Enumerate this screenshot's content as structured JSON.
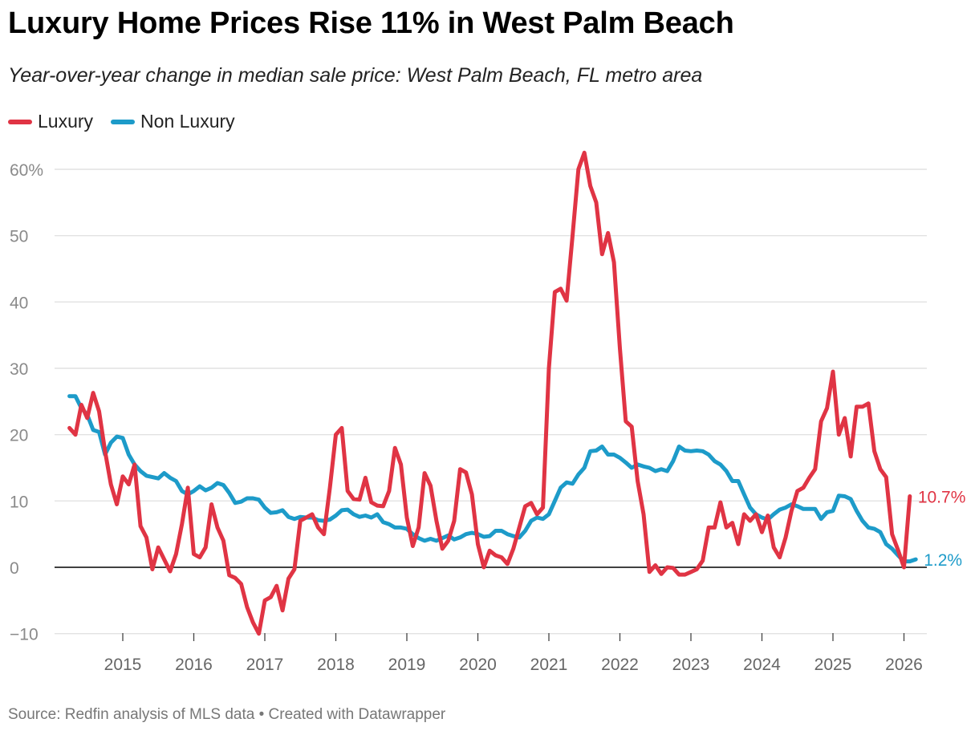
{
  "chart_data": {
    "type": "line",
    "title": "Luxury Home Prices Rise 11% in West Palm Beach",
    "subtitle": "Year-over-year change in median sale price: West Palm Beach, FL metro area",
    "footer": "Source: Redfin analysis of MLS data • Created with Datawrapper",
    "xlabel": "",
    "ylabel": "",
    "ylim": [
      -10,
      60
    ],
    "y_ticks": [
      -10,
      0,
      10,
      20,
      30,
      40,
      50,
      60
    ],
    "y_tick_labels": [
      "−10",
      "0",
      "10",
      "20",
      "30",
      "40",
      "50",
      "60%"
    ],
    "x_ticks": [
      2015,
      2016,
      2017,
      2018,
      2019,
      2020,
      2021,
      2022,
      2023,
      2024,
      2025,
      2026
    ],
    "x_tick_labels": [
      "2015",
      "2016",
      "2017",
      "2018",
      "2019",
      "2020",
      "2021",
      "2022",
      "2023",
      "2024",
      "2025",
      "2026"
    ],
    "x_start": 2014.25,
    "x_step": 0.08333,
    "series": [
      {
        "name": "Luxury",
        "color": "#e03444",
        "end_label": "10.7%",
        "values": [
          21.0,
          20.0,
          24.5,
          22.5,
          26.3,
          23.5,
          17.5,
          12.5,
          9.5,
          13.7,
          12.5,
          15.5,
          6.2,
          4.5,
          -0.3,
          3.0,
          1.2,
          -0.6,
          2.0,
          6.5,
          12.0,
          2.0,
          1.5,
          3.0,
          9.5,
          6.0,
          4.0,
          -1.2,
          -1.6,
          -2.5,
          -6.0,
          -8.3,
          -10.0,
          -5.0,
          -4.5,
          -2.8,
          -6.5,
          -1.7,
          -0.3,
          7.0,
          7.5,
          8.0,
          6.0,
          5.0,
          12.0,
          20.0,
          21.0,
          11.5,
          10.3,
          10.2,
          13.5,
          9.8,
          9.3,
          9.2,
          11.5,
          18.0,
          15.5,
          7.5,
          3.2,
          6.0,
          14.2,
          12.3,
          7.0,
          2.8,
          4.0,
          7.0,
          14.8,
          14.3,
          11.0,
          3.5,
          0.0,
          2.5,
          1.8,
          1.5,
          0.5,
          2.8,
          6.0,
          9.2,
          9.7,
          8.0,
          9.0,
          30.0,
          41.5,
          42.0,
          40.2,
          50.0,
          60.0,
          62.5,
          57.5,
          55.0,
          47.2,
          50.4,
          46.0,
          33.0,
          22.0,
          21.2,
          13.0,
          8.0,
          -0.7,
          0.3,
          -1.0,
          0.0,
          -0.1,
          -1.1,
          -1.1,
          -0.7,
          -0.3,
          1.0,
          6.0,
          6.0,
          9.8,
          6.0,
          6.7,
          3.5,
          8.0,
          7.0,
          8.0,
          5.3,
          7.8,
          3.0,
          1.5,
          4.5,
          8.5,
          11.5,
          12.0,
          13.5,
          14.8,
          22.0,
          24.0,
          29.5,
          20.0,
          22.5,
          16.7,
          24.2,
          24.2,
          24.7,
          17.5,
          14.8,
          13.6,
          5.0,
          2.6,
          0.0,
          10.7
        ]
      },
      {
        "name": "Non Luxury",
        "color": "#1d9bc9",
        "end_label": "1.2%",
        "values": [
          25.8,
          25.8,
          24.0,
          23.0,
          20.7,
          20.4,
          17.0,
          18.8,
          19.7,
          19.5,
          17.0,
          15.5,
          14.5,
          13.8,
          13.6,
          13.4,
          14.2,
          13.5,
          13.0,
          11.5,
          11.0,
          11.5,
          12.2,
          11.6,
          12.0,
          12.7,
          12.4,
          11.2,
          9.7,
          9.9,
          10.4,
          10.4,
          10.2,
          9.0,
          8.2,
          8.3,
          8.6,
          7.6,
          7.3,
          7.6,
          7.5,
          7.5,
          7.1,
          7.0,
          7.2,
          7.8,
          8.6,
          8.7,
          8.0,
          7.6,
          7.8,
          7.5,
          8.0,
          6.8,
          6.5,
          6.0,
          6.0,
          5.8,
          5.0,
          4.4,
          4.0,
          4.3,
          4.0,
          4.4,
          4.8,
          4.2,
          4.5,
          5.0,
          5.2,
          5.0,
          4.6,
          4.7,
          5.5,
          5.5,
          5.0,
          4.7,
          4.5,
          5.5,
          7.0,
          7.5,
          7.3,
          8.0,
          10.0,
          12.0,
          12.8,
          12.6,
          14.0,
          15.0,
          17.5,
          17.6,
          18.2,
          17.0,
          17.0,
          16.5,
          15.8,
          15.0,
          15.5,
          15.2,
          15.0,
          14.5,
          14.8,
          14.5,
          16.0,
          18.2,
          17.6,
          17.5,
          17.6,
          17.5,
          17.0,
          16.0,
          15.5,
          14.5,
          13.0,
          13.0,
          11.0,
          9.0,
          8.0,
          7.5,
          7.2,
          8.0,
          8.7,
          9.0,
          9.5,
          9.2,
          8.8,
          8.8,
          8.8,
          7.3,
          8.3,
          8.5,
          10.8,
          10.7,
          10.3,
          8.5,
          7.0,
          6.0,
          5.8,
          5.3,
          3.5,
          2.8,
          1.8,
          0.9,
          0.9,
          1.2
        ]
      }
    ]
  }
}
